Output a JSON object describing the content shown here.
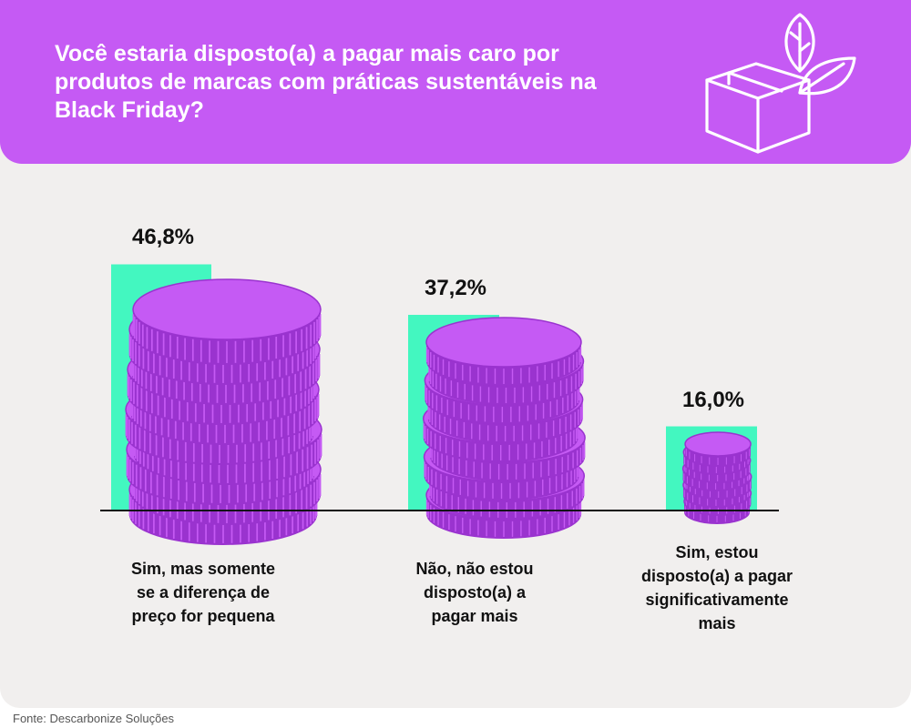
{
  "header": {
    "title": "Você estaria disposto(a) a pagar mais caro por produtos de marcas com práticas sustentáveis na Black Friday?",
    "icon": "box-with-leaves-icon"
  },
  "colors": {
    "header_bg": "#c55af4",
    "background": "#f1efee",
    "bar": "#43f7c0",
    "coin": "#c55af4",
    "coin_dark": "#9a33cf"
  },
  "chart_data": {
    "type": "bar",
    "categories": [
      "Sim, mas somente se a diferença de preço for pequena",
      "Não, não estou disposto(a) a pagar mais",
      "Sim, estou disposto(a) a pagar significativamente mais"
    ],
    "category_lines": [
      [
        "Sim, mas somente",
        "se a diferença de",
        "preço for pequena"
      ],
      [
        "Não, não estou",
        "disposto(a) a",
        "pagar mais"
      ],
      [
        "Sim, estou",
        "disposto(a) a pagar",
        "significativamente",
        "mais"
      ]
    ],
    "values": [
      46.8,
      37.2,
      16.0
    ],
    "value_labels": [
      "46,8%",
      "37,2%",
      "16,0%"
    ],
    "unit": "%",
    "ylim": [
      0,
      50
    ],
    "grid": false,
    "legend": "none"
  },
  "footer": {
    "source": "Fonte: Descarbonize Soluções"
  }
}
